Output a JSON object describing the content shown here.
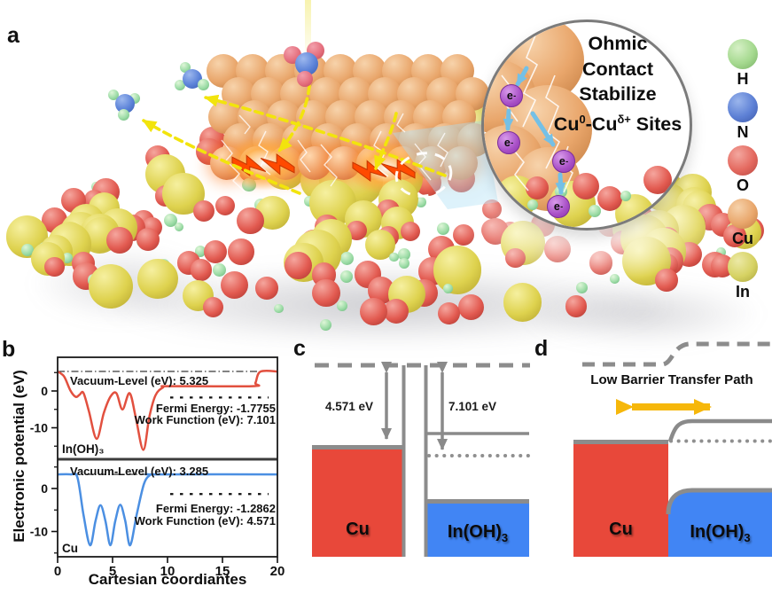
{
  "panels": {
    "a": "a",
    "b": "b",
    "c": "c",
    "d": "d"
  },
  "panel_a": {
    "inset": {
      "line1": "Ohmic",
      "line2": "Contact",
      "line3": "Stabilize",
      "cu_sites": {
        "p1": "Cu",
        "s1": "0",
        "p2": "-Cu",
        "s2": "δ+",
        "p3": " Sites"
      },
      "electron": {
        "base": "e",
        "sup": "-"
      }
    },
    "legend": {
      "items": [
        {
          "label": "H",
          "colors": [
            "#d6f0c6",
            "#a5d98f",
            "#77af64"
          ]
        },
        {
          "label": "N",
          "colors": [
            "#9ab5ec",
            "#5d80d5",
            "#3d59a8"
          ]
        },
        {
          "label": "O",
          "colors": [
            "#f3a79f",
            "#e4695f",
            "#b54640"
          ]
        },
        {
          "label": "Cu",
          "colors": [
            "#f6d2ab",
            "#e9a76c",
            "#c27c42"
          ]
        },
        {
          "label": "In",
          "colors": [
            "#ece9a6",
            "#d6d263",
            "#aaa43c"
          ]
        }
      ]
    }
  },
  "chart_data": {
    "type": "line",
    "title": "",
    "xlabel": "Cartesian coordiantes",
    "ylabel": "Electronic potential (eV)",
    "xlim": [
      0,
      20
    ],
    "xticks": [
      0,
      5,
      10,
      15,
      20
    ],
    "grid": false,
    "subplots": [
      {
        "label": "In(OH)₃",
        "color": "#e2503f",
        "vacuum_level_eV": 5.325,
        "fermi_energy_eV": -1.7755,
        "work_function_eV": 7.101,
        "annotations": {
          "vacuum": "Vacuum-Level (eV): 5.325",
          "fermi": "Fermi Energy:  -1.7755",
          "work": "Work Function (eV): 7.101"
        },
        "yticks": [
          0,
          -10
        ],
        "yticks_minor": [
          5,
          -5,
          -15
        ],
        "points": [
          [
            0,
            5.3
          ],
          [
            0.6,
            3.9
          ],
          [
            1.15,
            0.2
          ],
          [
            1.65,
            -1.6
          ],
          [
            2.0,
            -1.0
          ],
          [
            2.35,
            -0.5
          ],
          [
            2.85,
            -5.5
          ],
          [
            3.55,
            -13
          ],
          [
            4.2,
            -6
          ],
          [
            4.8,
            -1.6
          ],
          [
            5.35,
            -0.6
          ],
          [
            5.9,
            -5
          ],
          [
            6.55,
            -0.6
          ],
          [
            7.1,
            -7
          ],
          [
            7.8,
            -16
          ],
          [
            8.35,
            -7
          ],
          [
            8.9,
            -1.2
          ],
          [
            9.6,
            1.0
          ],
          [
            10.2,
            1.3
          ],
          [
            17.7,
            1.3
          ],
          [
            18.0,
            2.2
          ],
          [
            18.45,
            5.25
          ],
          [
            20,
            5.3
          ]
        ]
      },
      {
        "label": "Cu",
        "color": "#4b8fe2",
        "vacuum_level_eV": 3.285,
        "fermi_energy_eV": -1.2862,
        "work_function_eV": 4.571,
        "annotations": {
          "vacuum": "Vacuum-Level (eV): 3.285",
          "fermi": "Fermi Energy: -1.2862",
          "work": "Work Function (eV): 4.571"
        },
        "yticks": [
          0,
          -10
        ],
        "yticks_minor": [
          5,
          -5,
          -15
        ],
        "points": [
          [
            0,
            3.285
          ],
          [
            1.2,
            3.285
          ],
          [
            1.8,
            2.6
          ],
          [
            2.35,
            -6
          ],
          [
            2.95,
            -13.2
          ],
          [
            3.45,
            -7.5
          ],
          [
            3.9,
            -3.9
          ],
          [
            4.35,
            -7.5
          ],
          [
            4.8,
            -13.2
          ],
          [
            5.25,
            -7.5
          ],
          [
            5.7,
            -3.8
          ],
          [
            6.15,
            -7.5
          ],
          [
            6.6,
            -13.2
          ],
          [
            7.2,
            -6
          ],
          [
            7.85,
            1.0
          ],
          [
            8.4,
            3.1
          ],
          [
            9.0,
            3.285
          ],
          [
            20,
            3.285
          ]
        ]
      }
    ]
  },
  "panel_c": {
    "label_cu": "Cu",
    "inoh3": {
      "p": "In(OH)",
      "sub": "3"
    },
    "arrow1_label": "4.571 eV",
    "arrow2_label": "7.101 eV",
    "colors": {
      "cu_block": "#e8483a",
      "inoh3_block": "#4185f4",
      "line": "#8c8c8c"
    }
  },
  "panel_d": {
    "title": "Low Barrier Transfer Path",
    "label_cu": "Cu",
    "inoh3": {
      "p": "In(OH)",
      "sub": "3"
    },
    "colors": {
      "cu_block": "#e8483a",
      "inoh3_block": "#4185f4",
      "line": "#8c8c8c",
      "arrow": "#f6b70a"
    }
  },
  "scene": {
    "sphere_colors": {
      "In": [
        "#f6f0a0",
        "#ded24e",
        "#b3a22b"
      ],
      "O": [
        "#f5a69e",
        "#e25a50",
        "#aa352e"
      ],
      "H": [
        "#dff6d8",
        "#9cdca6",
        "#66b277"
      ],
      "Cu": [
        "#f7d3ab",
        "#e9a66b",
        "#c07a3e"
      ],
      "CuFront": [
        "#ffd9b0",
        "#ee9a5f",
        "#cc5f2a"
      ],
      "N": [
        "#9db8ee",
        "#5b82d8",
        "#3a5cae"
      ],
      "Opink": [
        "#f2a0ac",
        "#e56f7d",
        "#c04a58"
      ]
    },
    "slab_counts": {
      "In": 58,
      "O": 95,
      "H": 58
    },
    "accents": {
      "bolt": "#ff4a00",
      "dashed_arrow": "#f2e40c",
      "electron_arrow": "#74c0e6"
    }
  }
}
